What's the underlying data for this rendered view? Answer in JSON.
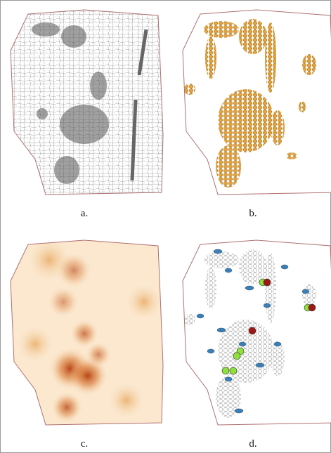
{
  "panels": [
    {
      "label": "a."
    },
    {
      "label": "b."
    },
    {
      "label": "c."
    },
    {
      "label": "d."
    }
  ]
}
